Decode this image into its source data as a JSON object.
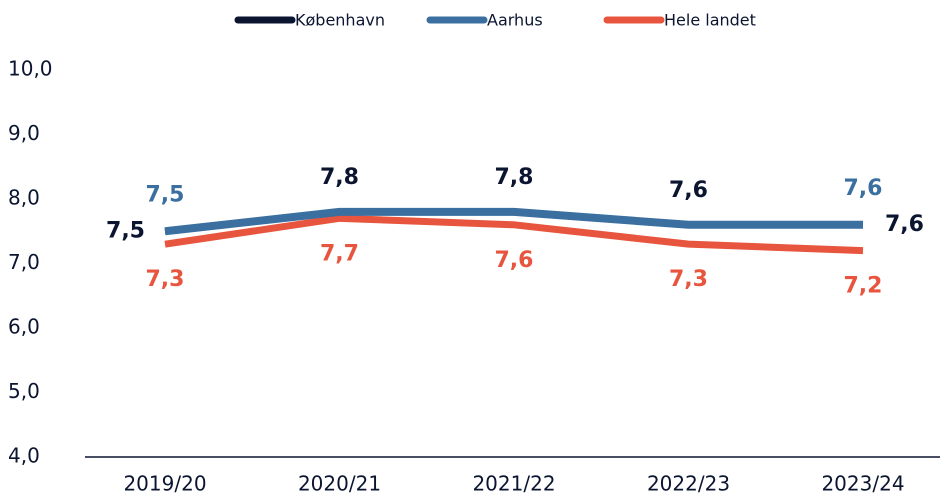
{
  "chart_data": {
    "type": "line",
    "categories": [
      "2019/20",
      "2020/21",
      "2021/22",
      "2022/23",
      "2023/24"
    ],
    "series": [
      {
        "name": "København",
        "color": "#0b1530",
        "values": [
          7.5,
          7.8,
          7.8,
          7.6,
          7.6
        ],
        "value_labels": [
          "7,5",
          "7,8",
          "7,8",
          "7,6",
          "7,6"
        ]
      },
      {
        "name": "Aarhus",
        "color": "#3a6fa0",
        "values": [
          7.5,
          7.8,
          7.8,
          7.6,
          7.6
        ],
        "value_labels": [
          "7,5",
          null,
          null,
          null,
          "7,6"
        ]
      },
      {
        "name": "Hele landet",
        "color": "#e8553e",
        "values": [
          7.3,
          7.7,
          7.6,
          7.3,
          7.2
        ],
        "value_labels": [
          "7,3",
          "7,7",
          "7,6",
          "7,3",
          "7,2"
        ]
      }
    ],
    "ylim": [
      4,
      10
    ],
    "yticks": [
      {
        "value": 4,
        "label": "4,0"
      },
      {
        "value": 5,
        "label": "5,0"
      },
      {
        "value": 6,
        "label": "6,0"
      },
      {
        "value": 7,
        "label": "7,0"
      },
      {
        "value": 8,
        "label": "8,0"
      },
      {
        "value": 9,
        "label": "9,0"
      },
      {
        "value": 10,
        "label": "10,0"
      }
    ],
    "grid": false,
    "legend": "top"
  }
}
